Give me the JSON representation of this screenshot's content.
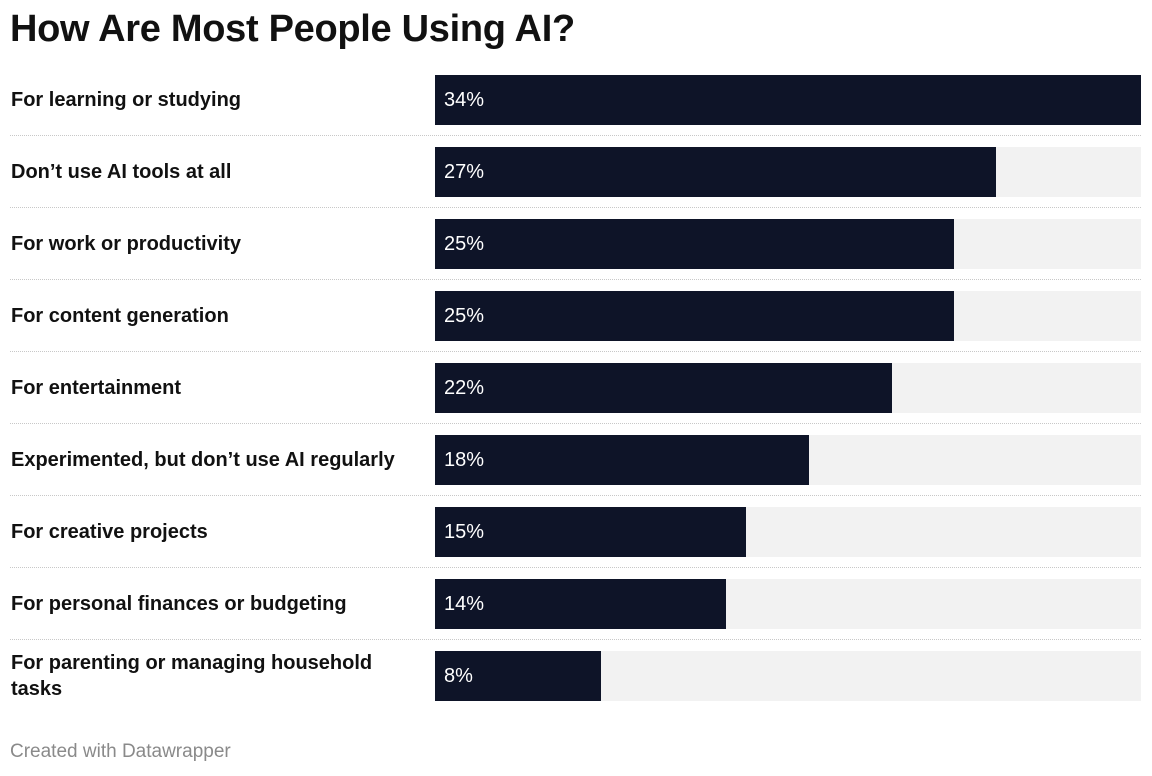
{
  "chart_data": {
    "type": "bar",
    "orientation": "horizontal",
    "title": "How Are Most People Using AI?",
    "categories": [
      "For learning or studying",
      "Don’t use AI tools at all",
      "For work or productivity",
      "For content generation",
      "For entertainment",
      "Experimented, but don’t use AI regularly",
      "For creative projects",
      "For personal finances or budgeting",
      "For parenting or managing household tasks"
    ],
    "values": [
      34,
      27,
      25,
      25,
      22,
      18,
      15,
      14,
      8
    ],
    "value_labels": [
      "34%",
      "27%",
      "25%",
      "25%",
      "22%",
      "18%",
      "15%",
      "14%",
      "8%"
    ],
    "unit": "%",
    "xlim": [
      0,
      34
    ],
    "xlabel": "",
    "ylabel": "",
    "grid": false,
    "legend": "none",
    "colors": {
      "bar": "#0e1428",
      "track": "#f2f2f2",
      "value_text": "#ffffff",
      "label_text": "#111111"
    }
  },
  "footer": {
    "credit": "Created with Datawrapper"
  }
}
